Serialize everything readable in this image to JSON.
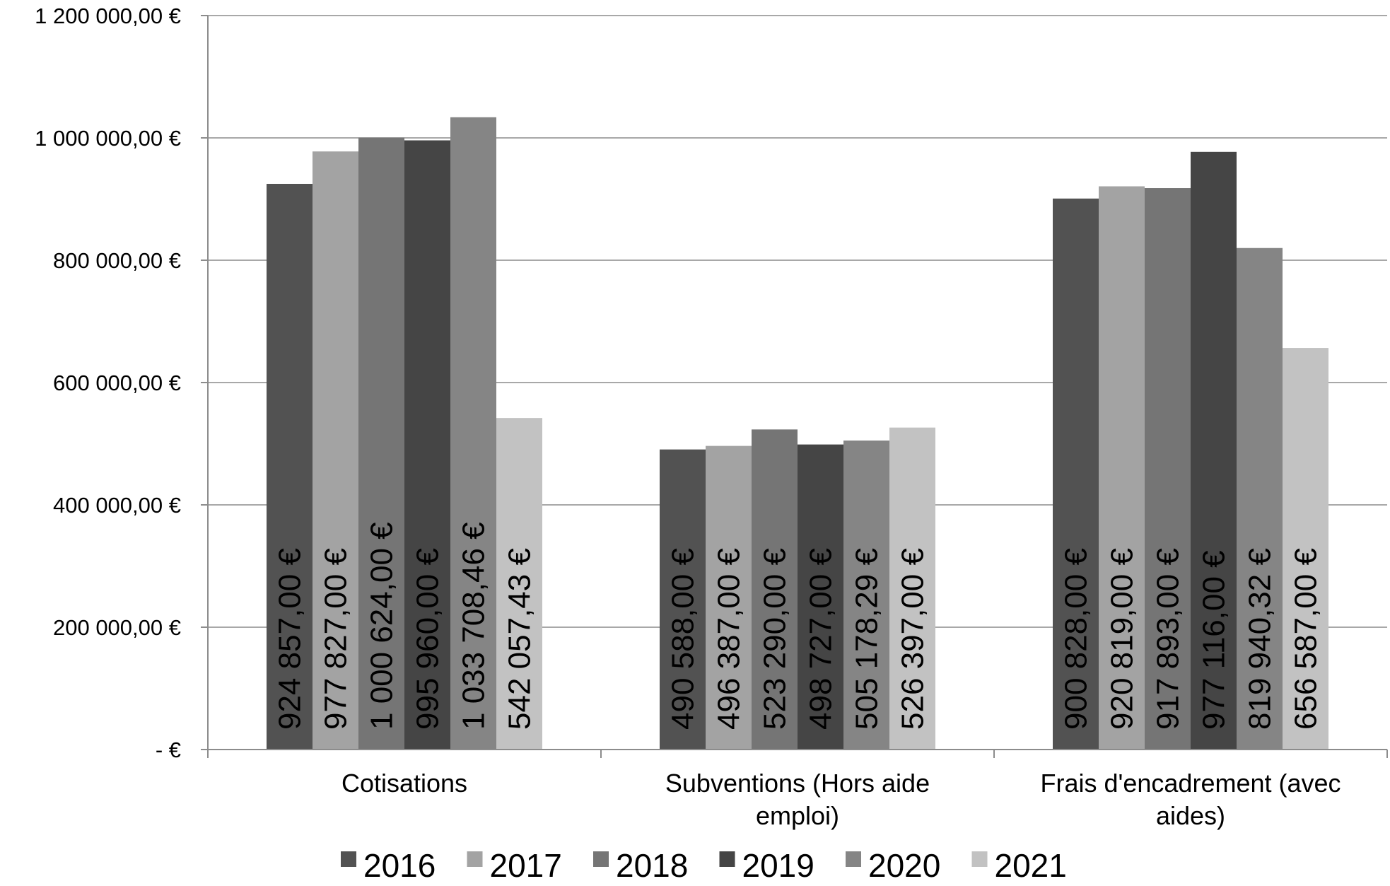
{
  "chart_data": {
    "type": "bar",
    "title": "",
    "xlabel": "",
    "ylabel": "",
    "categories": [
      [
        "Cotisations"
      ],
      [
        "Subventions (Hors aide",
        "emploi)"
      ],
      [
        "Frais d'encadrement (avec",
        "aides)"
      ]
    ],
    "ylim": [
      0,
      1200000
    ],
    "yticks": [
      0,
      200000,
      400000,
      600000,
      800000,
      1000000,
      1200000
    ],
    "ytick_labels": [
      "-   €",
      "200 000,00 €",
      "400 000,00 €",
      "600 000,00 €",
      "800 000,00 €",
      "1 000 000,00 €",
      "1 200 000,00 €"
    ],
    "grid": true,
    "legend_position": "bottom",
    "series": [
      {
        "name": "2016",
        "color": "#525252",
        "values": [
          924857.0,
          490588.0,
          900828.0
        ],
        "labels": [
          "924 857,00 €",
          "490 588,00 €",
          "900 828,00 €"
        ]
      },
      {
        "name": "2017",
        "color": "#a3a3a3",
        "values": [
          977827.0,
          496387.0,
          920819.0
        ],
        "labels": [
          "977 827,00 €",
          "496 387,00 €",
          "920 819,00 €"
        ]
      },
      {
        "name": "2018",
        "color": "#757575",
        "values": [
          1000624.0,
          523290.0,
          917893.0
        ],
        "labels": [
          "1 000 624,00 €",
          "523 290,00 €",
          "917 893,00 €"
        ]
      },
      {
        "name": "2019",
        "color": "#454545",
        "values": [
          995960.0,
          498727.0,
          977116.0
        ],
        "labels": [
          "995 960,00 €",
          "498 727,00 €",
          "977 116,00 €"
        ]
      },
      {
        "name": "2020",
        "color": "#858585",
        "values": [
          1033708.46,
          505178.29,
          819940.32
        ],
        "labels": [
          "1 033 708,46 €",
          "505 178,29 €",
          "819 940,32 €"
        ]
      },
      {
        "name": "2021",
        "color": "#c2c2c2",
        "values": [
          542057.43,
          526397.0,
          656587.0
        ],
        "labels": [
          "542 057,43 €",
          "526 397,00 €",
          "656 587,00 €"
        ]
      }
    ]
  }
}
